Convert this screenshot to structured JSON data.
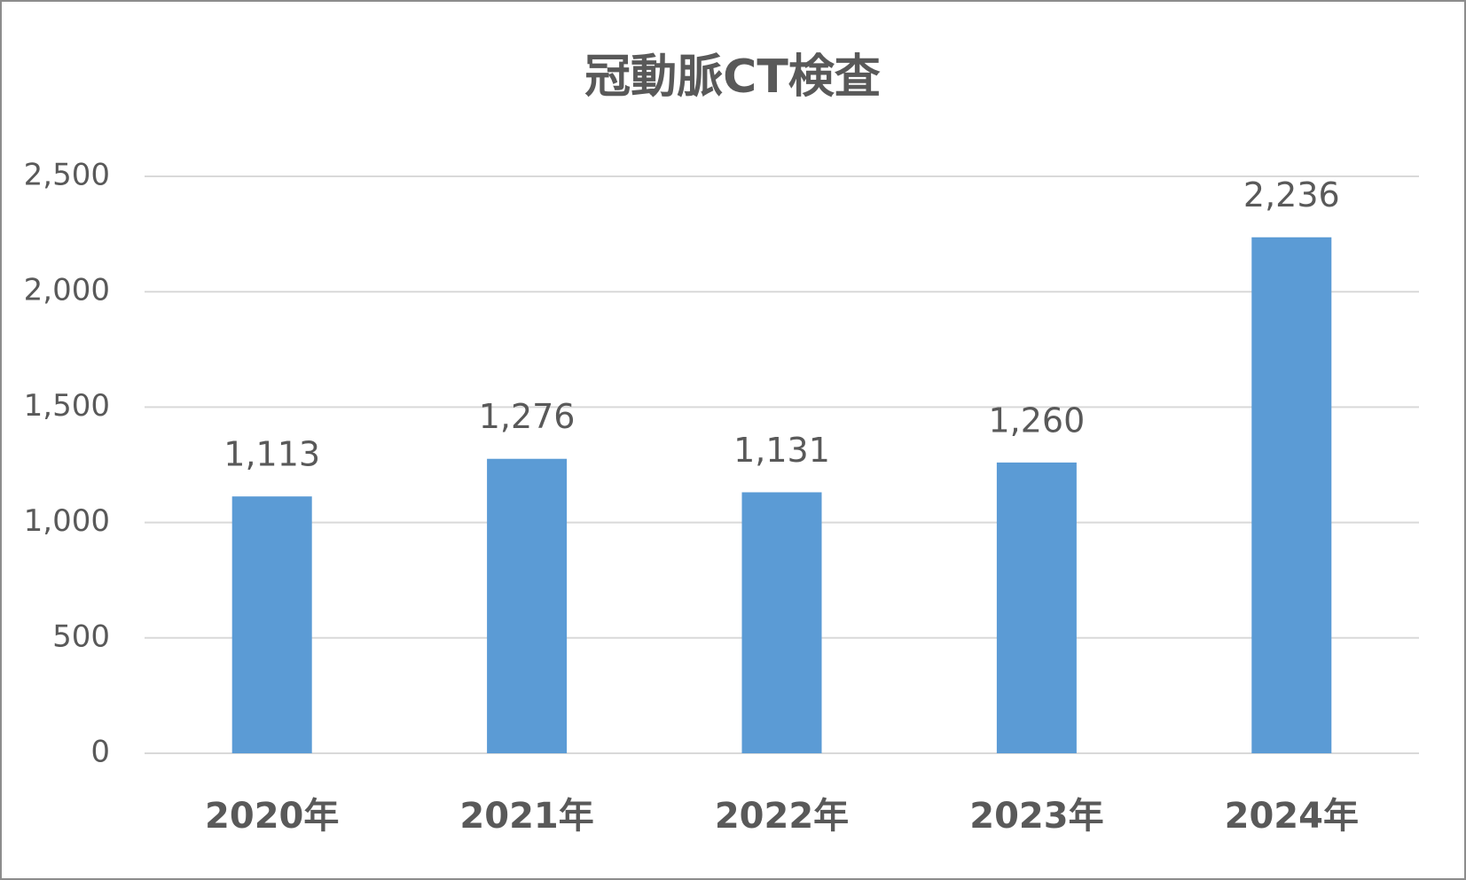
{
  "chart_data": {
    "type": "bar",
    "title": "冠動脈CT検査",
    "categories": [
      "2020年",
      "2021年",
      "2022年",
      "2023年",
      "2024年"
    ],
    "values": [
      1113,
      1276,
      1131,
      1260,
      2236
    ],
    "value_labels": [
      "1,113",
      "1,276",
      "1,131",
      "1,260",
      "2,236"
    ],
    "color": "#5b9bd5",
    "ylim": [
      0,
      2500
    ],
    "yticks": [
      0,
      500,
      {
        "value": 1000,
        "label": "1,000"
      },
      {
        "value": 1500,
        "label": "1,500"
      },
      {
        "value": 2000,
        "label": "2,000"
      },
      {
        "value": 2500,
        "label": "2,500"
      }
    ],
    "grid": true
  }
}
